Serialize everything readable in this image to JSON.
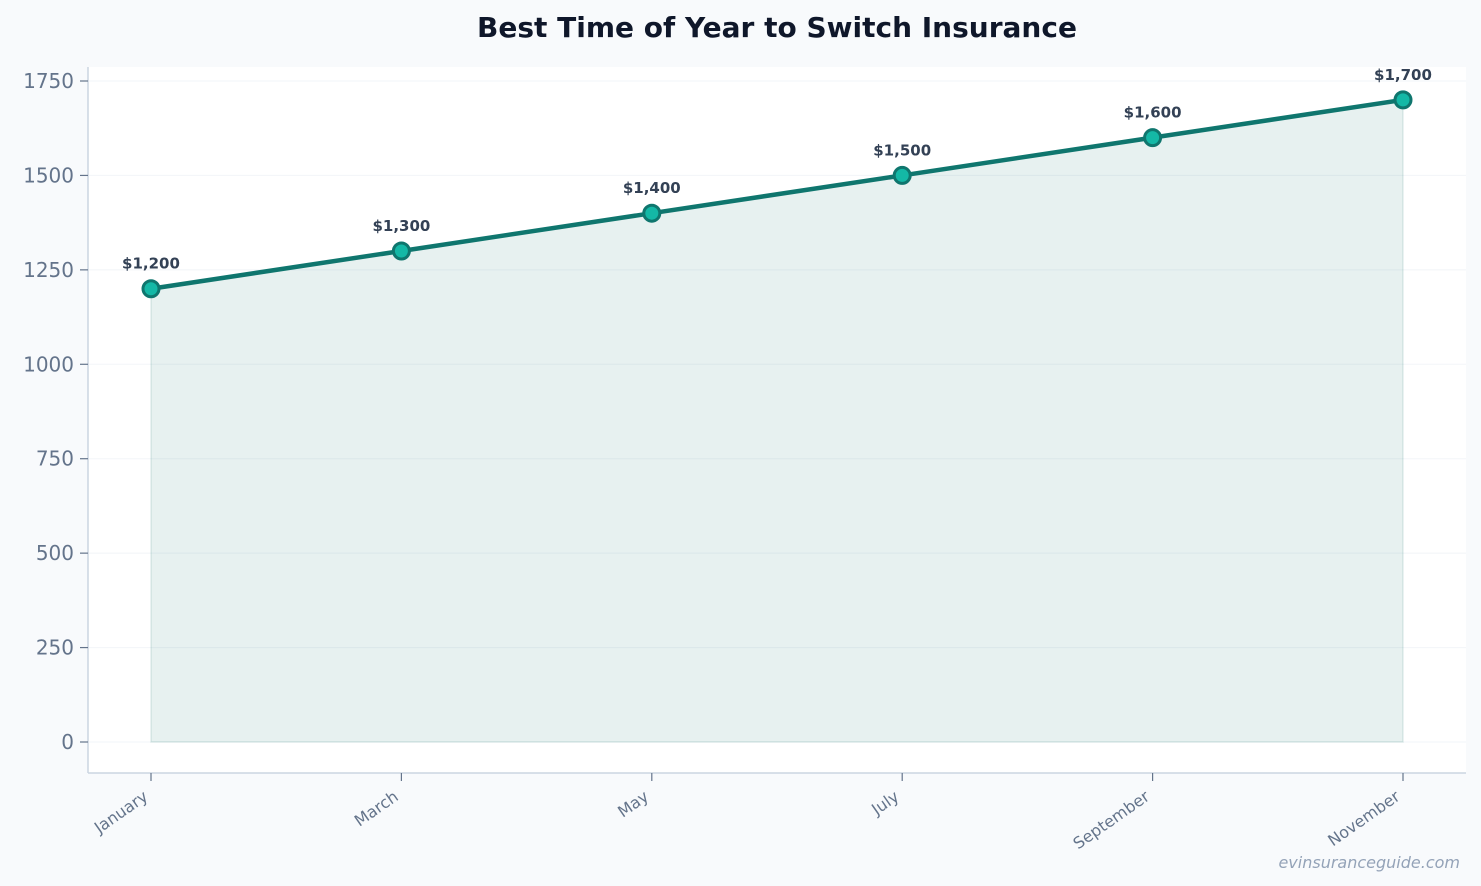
{
  "chart_data": {
    "type": "area",
    "title": "Best Time of Year to Switch Insurance",
    "categories": [
      "January",
      "March",
      "May",
      "July",
      "September",
      "November"
    ],
    "series": [
      {
        "values": [
          1200,
          1300,
          1400,
          1500,
          1600,
          1700
        ],
        "labels": [
          "$1,200",
          "$1,300",
          "$1,400",
          "$1,500",
          "$1,600",
          "$1,700"
        ],
        "color": "#0f766e",
        "marker_fill": "#14b8a6",
        "fill_color": "#0f766e"
      }
    ],
    "ylim": [
      -80,
      1790
    ],
    "yticks": [
      0,
      250,
      500,
      750,
      1000,
      1250,
      1500,
      1750
    ],
    "grid": true
  },
  "watermark": "evinsuranceguide.com"
}
